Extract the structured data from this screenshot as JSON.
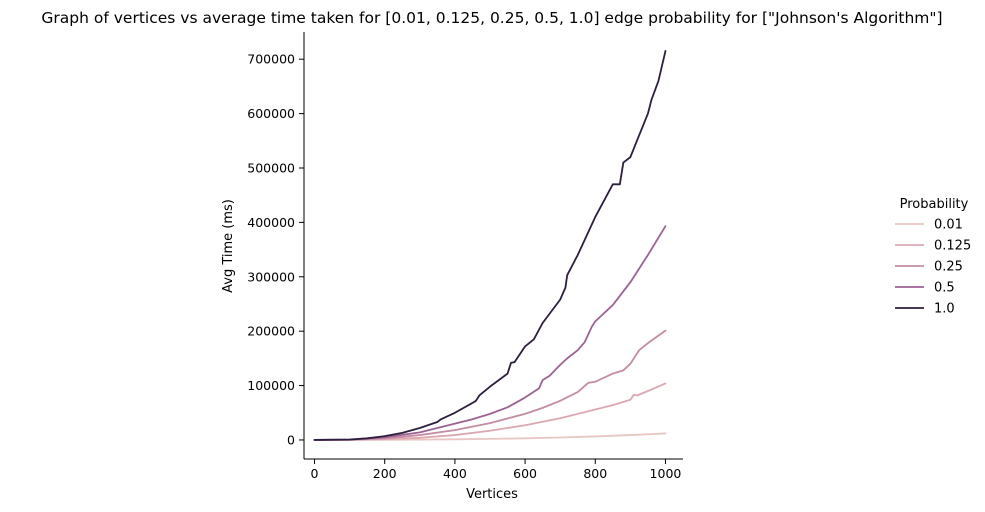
{
  "chart_data": {
    "type": "line",
    "title": "Graph of vertices vs average time taken for [0.01, 0.125, 0.25, 0.5, 1.0] edge probability for [\"Johnson's Algorithm\"]",
    "xlabel": "Vertices",
    "ylabel": "Avg Time (ms)",
    "xlim": [
      -30,
      1050
    ],
    "ylim": [
      -35000,
      750000
    ],
    "xticks": [
      0,
      200,
      400,
      600,
      800,
      1000
    ],
    "xtick_labels": [
      "0",
      "200",
      "400",
      "600",
      "800",
      "1000"
    ],
    "yticks": [
      0,
      100000,
      200000,
      300000,
      400000,
      500000,
      600000,
      700000
    ],
    "ytick_labels": [
      "0",
      "100000",
      "200000",
      "300000",
      "400000",
      "500000",
      "600000",
      "700000"
    ],
    "grid": false,
    "legend": {
      "title": "Probability",
      "placement": "right"
    },
    "series": [
      {
        "name": "0.01",
        "color": "#e8c6c3",
        "x": [
          0,
          100,
          200,
          300,
          400,
          500,
          600,
          700,
          800,
          900,
          1000
        ],
        "y": [
          0,
          100,
          300,
          700,
          1200,
          2000,
          3000,
          4500,
          6500,
          9000,
          12000
        ]
      },
      {
        "name": "0.125",
        "color": "#dba8b2",
        "x": [
          0,
          100,
          200,
          300,
          400,
          500,
          600,
          700,
          800,
          850,
          900,
          910,
          920,
          950,
          1000
        ],
        "y": [
          0,
          200,
          1500,
          4000,
          9000,
          17000,
          27000,
          40000,
          56000,
          64000,
          74000,
          83000,
          82000,
          90000,
          104000
        ]
      },
      {
        "name": "0.25",
        "color": "#c48ba3",
        "x": [
          0,
          100,
          200,
          300,
          400,
          500,
          600,
          650,
          700,
          750,
          780,
          800,
          850,
          880,
          900,
          925,
          950,
          1000
        ],
        "y": [
          0,
          300,
          3000,
          9000,
          18000,
          31000,
          48000,
          59000,
          72000,
          88000,
          105000,
          107000,
          122000,
          128000,
          140000,
          165000,
          178000,
          201000
        ]
      },
      {
        "name": "0.5",
        "color": "#9c6292",
        "x": [
          0,
          100,
          200,
          300,
          400,
          450,
          500,
          550,
          600,
          640,
          650,
          670,
          700,
          720,
          750,
          770,
          790,
          800,
          850,
          900,
          950,
          1000
        ],
        "y": [
          0,
          500,
          5000,
          14000,
          30000,
          38000,
          48000,
          60000,
          78000,
          95000,
          110000,
          118000,
          138000,
          150000,
          165000,
          180000,
          208000,
          218000,
          248000,
          290000,
          340000,
          393000
        ]
      },
      {
        "name": "1.0",
        "color": "#2d1e3e",
        "x": [
          0,
          100,
          150,
          200,
          250,
          300,
          350,
          360,
          400,
          450,
          460,
          470,
          500,
          550,
          560,
          570,
          600,
          625,
          650,
          700,
          715,
          720,
          750,
          800,
          850,
          870,
          880,
          900,
          925,
          950,
          960,
          980,
          1000
        ],
        "y": [
          0,
          800,
          3000,
          7000,
          13000,
          22000,
          33000,
          38000,
          50000,
          68000,
          72000,
          82000,
          98000,
          122000,
          142000,
          143000,
          172000,
          185000,
          215000,
          258000,
          280000,
          303000,
          340000,
          410000,
          470000,
          470000,
          510000,
          520000,
          560000,
          600000,
          625000,
          660000,
          715000
        ]
      }
    ]
  }
}
